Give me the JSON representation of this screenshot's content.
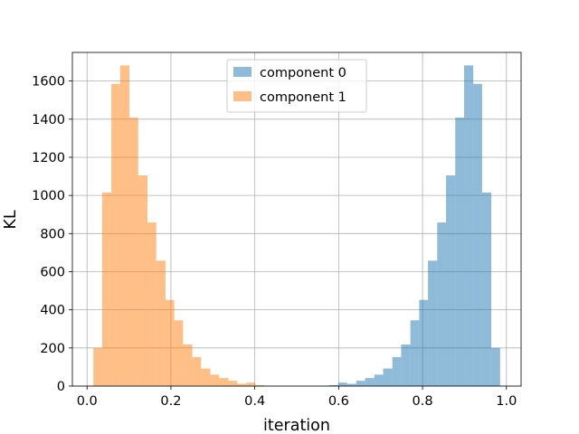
{
  "chart_data": {
    "type": "histogram",
    "title": "",
    "xlabel": "iteration",
    "ylabel": "KL",
    "xlim": [
      -0.035,
      1.035
    ],
    "ylim": [
      0,
      1750
    ],
    "xticks": [
      0.0,
      0.2,
      0.4,
      0.6,
      0.8,
      1.0
    ],
    "xtick_labels": [
      "0.0",
      "0.2",
      "0.4",
      "0.6",
      "0.8",
      "1.0"
    ],
    "yticks": [
      0,
      200,
      400,
      600,
      800,
      1000,
      1200,
      1400,
      1600
    ],
    "ytick_labels": [
      "0",
      "200",
      "400",
      "600",
      "800",
      "1000",
      "1200",
      "1400",
      "1600"
    ],
    "grid": true,
    "legend_position": "upper center",
    "bin_edges": [
      0.015,
      0.036,
      0.058,
      0.079,
      0.101,
      0.122,
      0.144,
      0.165,
      0.187,
      0.208,
      0.229,
      0.251,
      0.272,
      0.294,
      0.315,
      0.337,
      0.358,
      0.38,
      0.401,
      0.422
    ],
    "series": [
      {
        "name": "component 0",
        "color": "#1f77b4",
        "alpha": 0.5,
        "bin_edges": [
          0.578,
          0.599,
          0.62,
          0.642,
          0.663,
          0.685,
          0.706,
          0.728,
          0.749,
          0.771,
          0.792,
          0.813,
          0.835,
          0.856,
          0.878,
          0.899,
          0.921,
          0.942,
          0.964,
          0.985
        ],
        "values": [
          5,
          18,
          12,
          28,
          42,
          60,
          92,
          152,
          218,
          345,
          452,
          658,
          858,
          1105,
          1408,
          1682,
          1585,
          1015,
          200
        ]
      },
      {
        "name": "component 1",
        "color": "#ff7f0e",
        "alpha": 0.5,
        "values": [
          200,
          1015,
          1585,
          1682,
          1408,
          1105,
          858,
          658,
          452,
          345,
          218,
          152,
          92,
          60,
          42,
          28,
          12,
          18,
          5
        ]
      }
    ]
  }
}
